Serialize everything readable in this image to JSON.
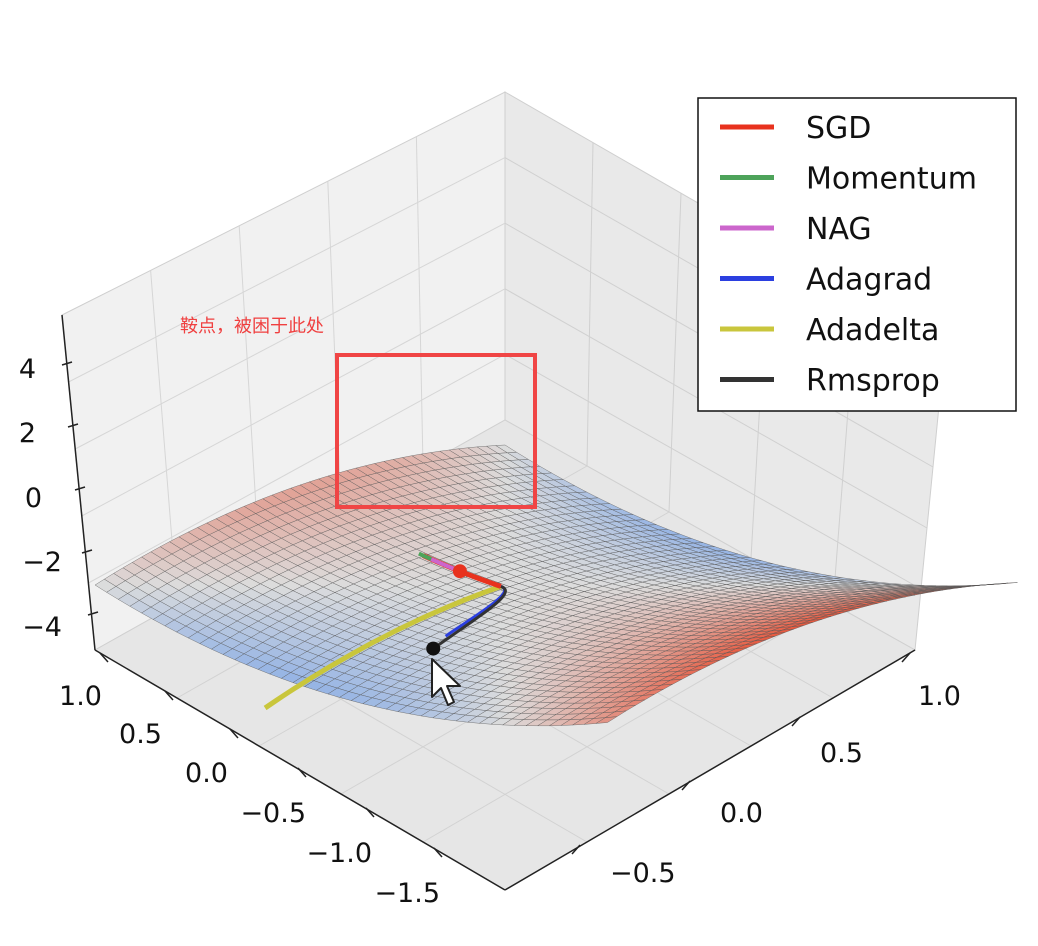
{
  "chart_data": {
    "type": "surface-3d",
    "title": "",
    "surface_function": "z = x^2 - y^2",
    "z_ticks": [
      "4",
      "2",
      "0",
      "−2",
      "−4"
    ],
    "x_ticks": [
      "1.0",
      "0.5",
      "0.0",
      "−0.5",
      "−1.0",
      "−1.5"
    ],
    "y_ticks": [
      "1.0",
      "0.5",
      "0.0",
      "−0.5"
    ],
    "legend_position": "top-right",
    "series": [
      {
        "name": "SGD",
        "color": "#e8321e"
      },
      {
        "name": "Momentum",
        "color": "#4da35a"
      },
      {
        "name": "NAG",
        "color": "#cc66cc"
      },
      {
        "name": "Adagrad",
        "color": "#2b3fe0"
      },
      {
        "name": "Adadelta",
        "color": "#c9c63c"
      },
      {
        "name": "Rmsprop",
        "color": "#333333"
      }
    ],
    "annotation": {
      "text": "鞍点，被困于此处",
      "color": "#f04040",
      "box_color": "#f04545"
    }
  },
  "colors": {
    "surface_low": "#3a80f0",
    "surface_mid": "#dcdcdc",
    "surface_high": "#e8553a",
    "grid_line": "#555555"
  },
  "icons": {
    "cursor": "mouse-pointer-icon"
  }
}
